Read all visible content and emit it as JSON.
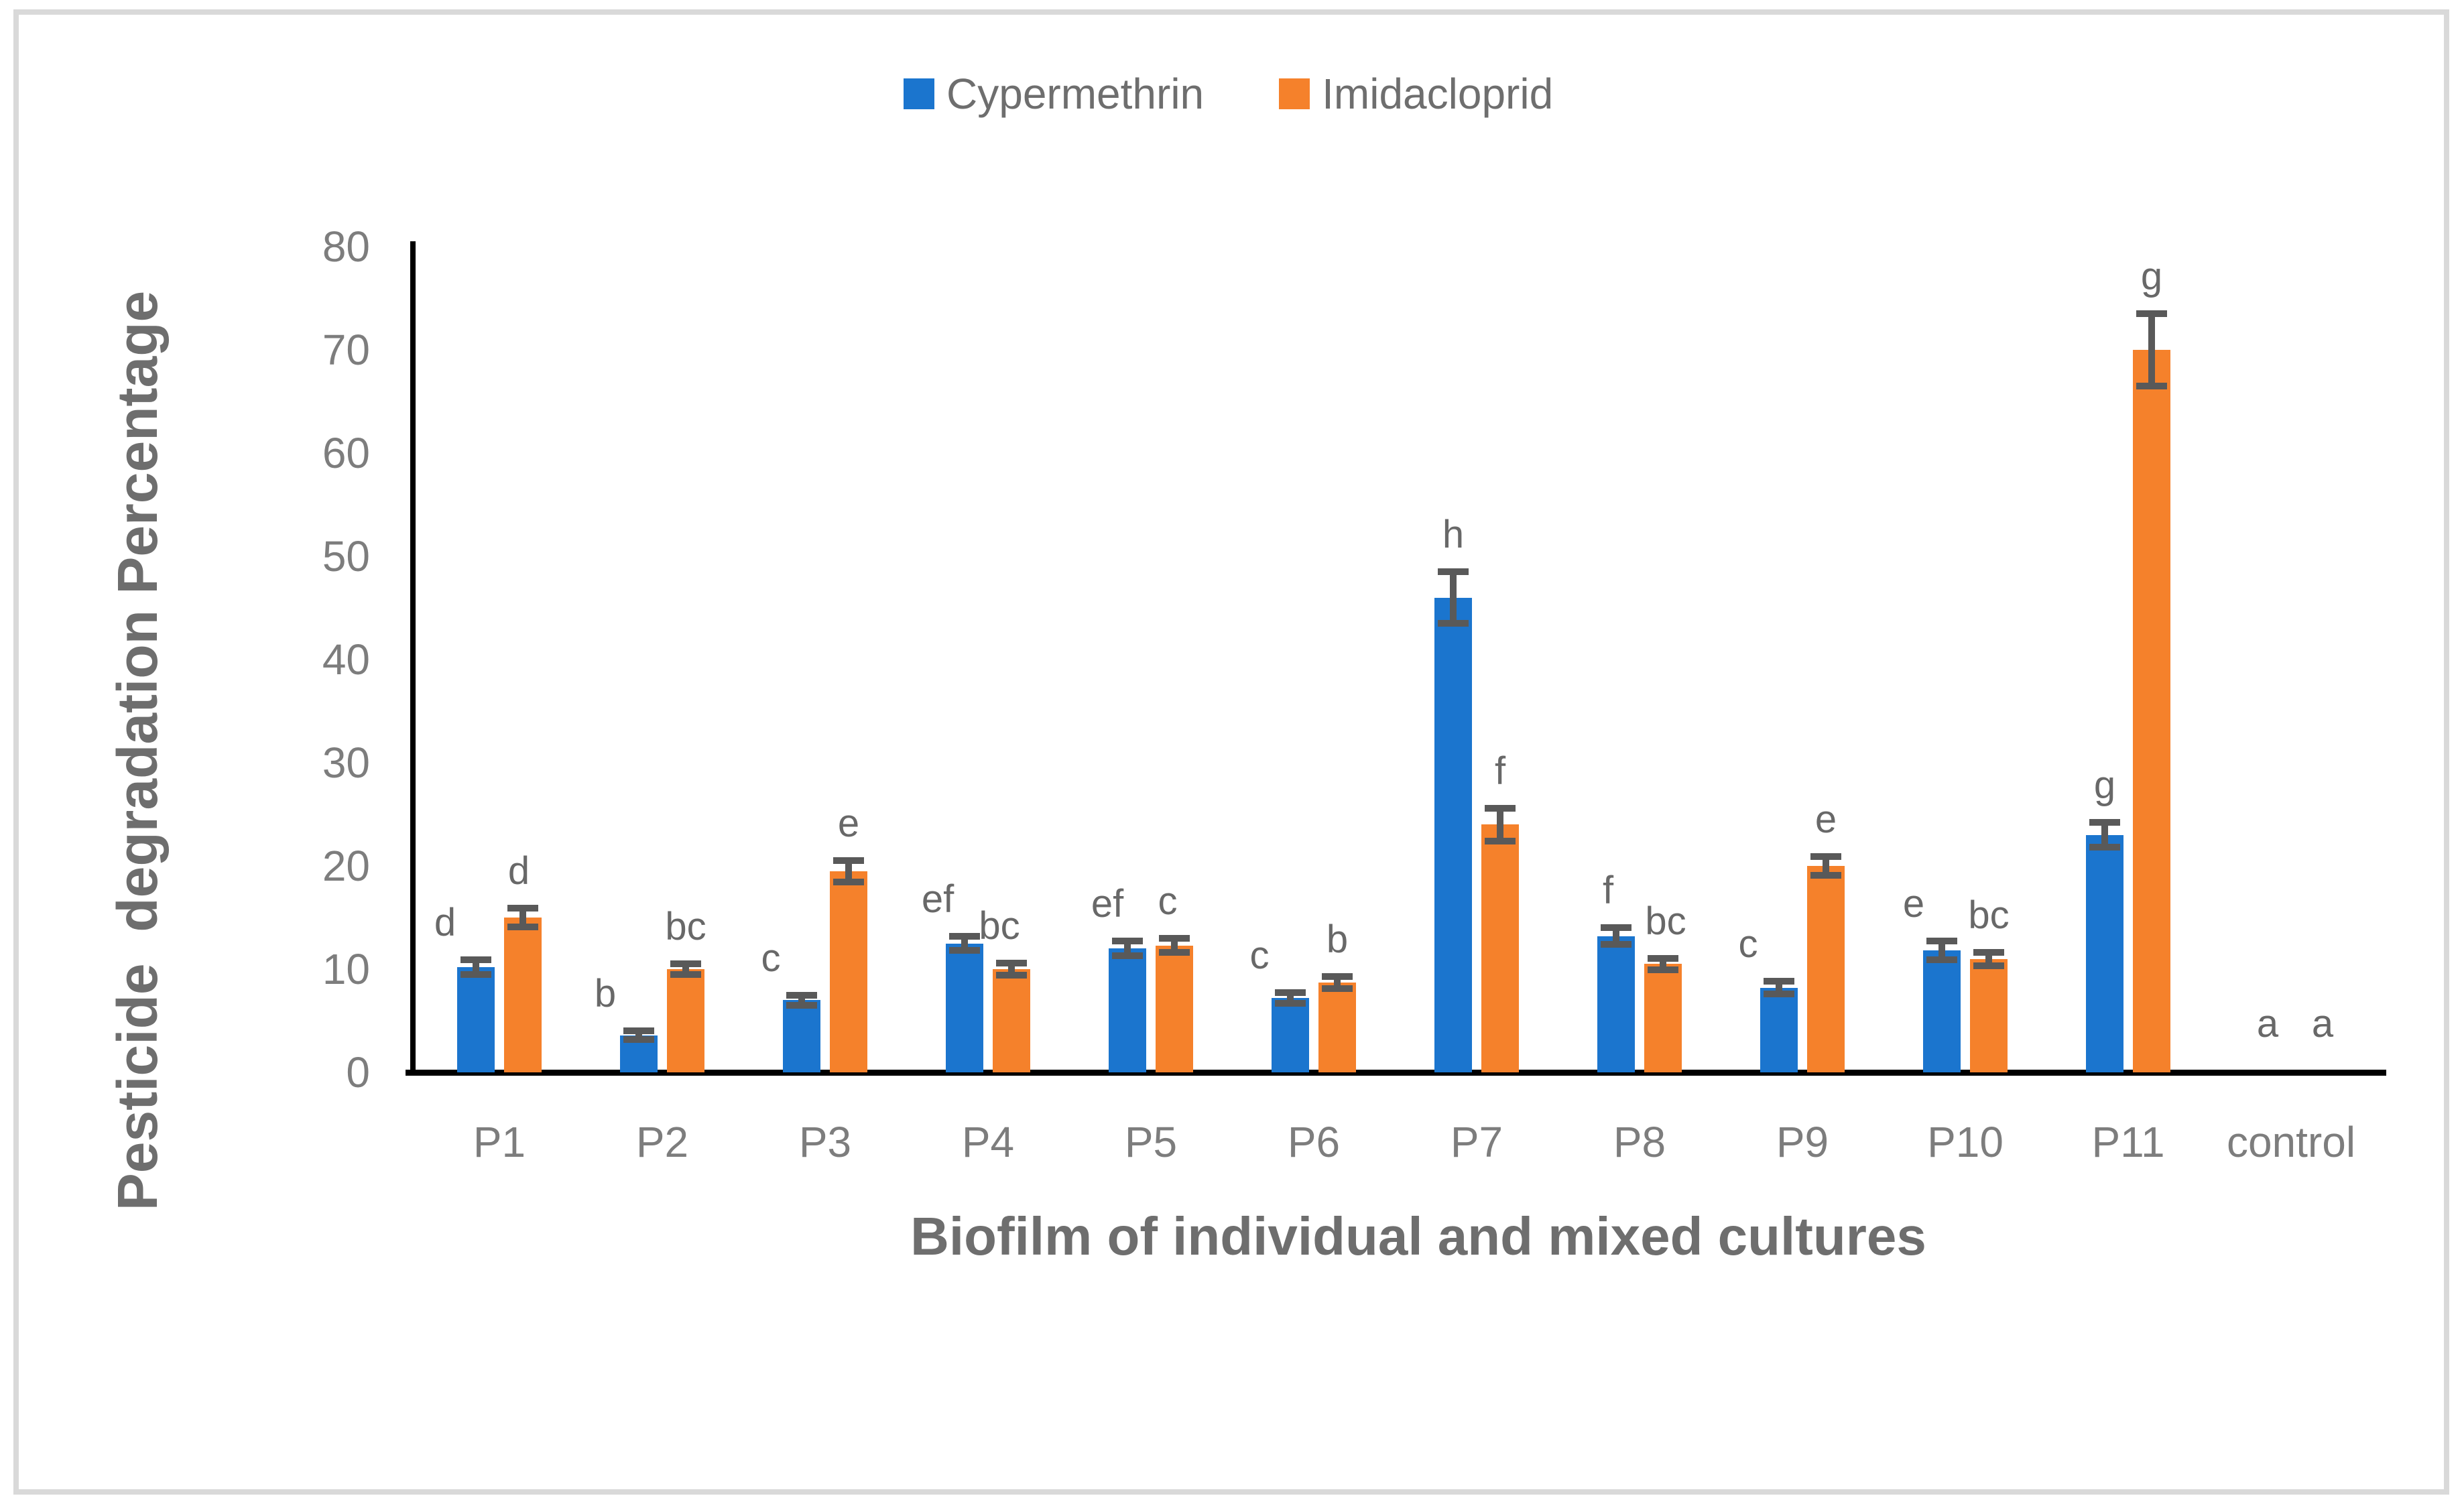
{
  "figure": {
    "border_color": "#d9d9d9",
    "background": "#ffffff",
    "axis_line_color": "#000000",
    "error_bar_color": "#595959",
    "text_gray": "#7d7d7d",
    "title_gray": "#6e6e6e"
  },
  "legend": {
    "items": [
      {
        "label": "Cypermethrin",
        "color": "#1b75ce",
        "swatch": "blue-square-icon"
      },
      {
        "label": "Imidacloprid",
        "color": "#f5812b",
        "swatch": "orange-square-icon"
      }
    ]
  },
  "chart_data": {
    "type": "bar",
    "title": "",
    "xlabel": "Biofilm of individual and mixed cultures",
    "ylabel": "Pesticide  degradation Percentage",
    "ylim": [
      0,
      80
    ],
    "yticks": [
      0,
      10,
      20,
      30,
      40,
      50,
      60,
      70,
      80
    ],
    "grid": false,
    "legend_position": "top-center",
    "categories": [
      "P1",
      "P2",
      "P3",
      "P4",
      "P5",
      "P6",
      "P7",
      "P8",
      "P9",
      "P10",
      "P11",
      "control"
    ],
    "series": [
      {
        "name": "Cypermethrin",
        "color": "#1b75ce",
        "values": [
          10.2,
          3.6,
          7,
          12.5,
          12,
          7.2,
          46,
          13.2,
          8.2,
          11.8,
          23,
          0
        ],
        "errors": [
          0.7,
          0.45,
          0.5,
          0.7,
          0.7,
          0.5,
          2.5,
          0.8,
          0.6,
          0.9,
          1.2,
          0
        ],
        "letters": [
          "d",
          "b",
          "c",
          "ef",
          "ef",
          "c",
          "h",
          "f",
          "c",
          "e",
          "g",
          "a"
        ]
      },
      {
        "name": "Imidacloprid",
        "color": "#f5812b",
        "values": [
          15,
          10,
          19.5,
          10,
          12.3,
          8.7,
          24,
          10.5,
          20,
          11,
          70,
          0
        ],
        "errors": [
          0.9,
          0.55,
          1.05,
          0.6,
          0.7,
          0.6,
          1.6,
          0.55,
          0.9,
          0.65,
          3.5,
          0
        ],
        "letters": [
          "d",
          "bc",
          "e",
          "bc",
          "c",
          "b",
          "f",
          "bc",
          "e",
          "bc",
          "g",
          "a"
        ]
      }
    ],
    "letter_dx": {
      "Cypermethrin": [
        -46,
        -50,
        -46,
        -40,
        -30,
        -46,
        0,
        -12,
        -46,
        -42,
        0,
        0
      ],
      "Imidacloprid": [
        -6,
        0,
        0,
        -18,
        -10,
        0,
        0,
        4,
        0,
        0,
        0,
        12
      ]
    }
  }
}
